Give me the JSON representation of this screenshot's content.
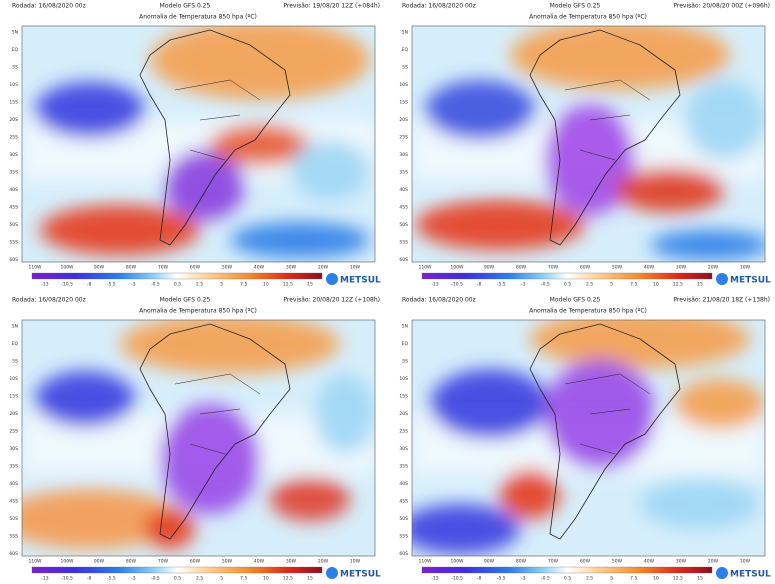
{
  "panels": [
    {
      "rodada": "Rodada: 16/08/2020 00z",
      "modelo": "Modelo GFS 0.25",
      "previsao": "Previsão: 19/08/20 12Z (+084h)",
      "title": "Anomalia de Temperatura 850 hpa (ºC)"
    },
    {
      "rodada": "Rodada: 16/08/2020 00z",
      "modelo": "Modelo GFS 0.25",
      "previsao": "Previsão: 20/08/20 00Z (+096h)",
      "title": "Anomalia de Temperatura 850 hpa (ºC)"
    },
    {
      "rodada": "Rodada: 16/08/2020 00z",
      "modelo": "Modelo GFS 0.25",
      "previsao": "Previsão: 20/08/20 12Z (+108h)",
      "title": "Anomalia de Temperatura 850 hpa (ºC)"
    },
    {
      "rodada": "Rodada: 16/08/2020 00z",
      "modelo": "Modelo GFS 0.25",
      "previsao": "Previsão: 21/08/20 18Z (+138h)",
      "title": "Anomalia de Temperatura 850 hpa (ºC)"
    }
  ],
  "colorbar": {
    "labels": [
      "-13",
      "-10.5",
      "-8",
      "-5.5",
      "-3",
      "-0.5",
      "0.5",
      "2.5",
      "5",
      "7.5",
      "10",
      "12.5",
      "15"
    ]
  },
  "lon": [
    "110W",
    "100W",
    "90W",
    "80W",
    "70W",
    "60W",
    "50W",
    "40W",
    "30W",
    "20W",
    "10W"
  ],
  "lat": [
    "5N",
    "EQ",
    "5S",
    "10S",
    "15S",
    "20S",
    "25S",
    "30S",
    "35S",
    "40S",
    "45S",
    "50S",
    "55S",
    "60S"
  ],
  "logo": "METSUL"
}
